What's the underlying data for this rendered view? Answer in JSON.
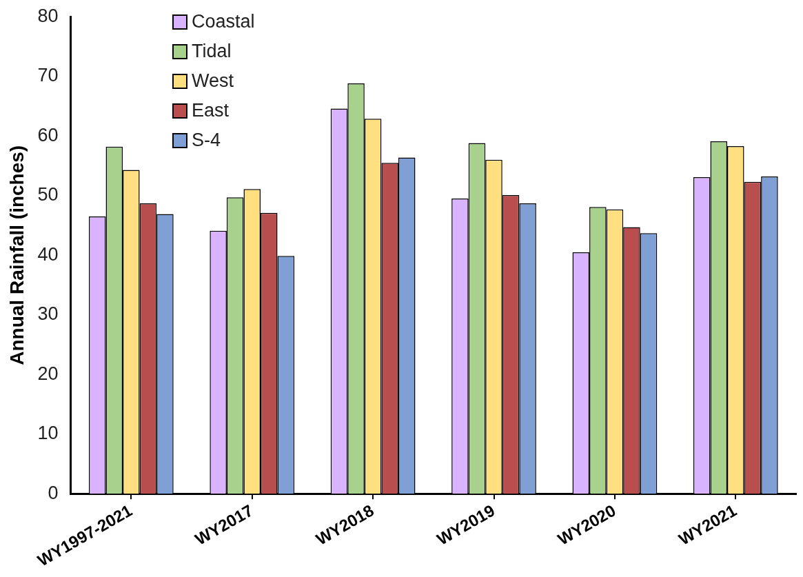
{
  "chart_data": {
    "type": "bar",
    "ylabel": "Annual Rainfall (inches)",
    "categories": [
      "WY1997-2021",
      "WY2017",
      "WY2018",
      "WY2019",
      "WY2020",
      "WY2021"
    ],
    "series": [
      {
        "name": "Coastal",
        "color": "#d9b3ff",
        "values": [
          46.5,
          44.1,
          64.6,
          49.5,
          40.5,
          53.1
        ]
      },
      {
        "name": "Tidal",
        "color": "#a9d18e",
        "values": [
          58.2,
          49.7,
          68.8,
          58.8,
          48.1,
          59.1
        ]
      },
      {
        "name": "West",
        "color": "#ffdf80",
        "values": [
          54.3,
          51.1,
          62.9,
          56.0,
          47.7,
          58.3
        ]
      },
      {
        "name": "East",
        "color": "#b94e4e",
        "values": [
          48.7,
          47.1,
          55.5,
          50.1,
          44.7,
          52.3
        ]
      },
      {
        "name": "S-4",
        "color": "#7f9fd5",
        "values": [
          46.9,
          39.9,
          56.4,
          48.7,
          43.7,
          53.2
        ]
      }
    ],
    "ylim": [
      0,
      80
    ],
    "yticks": [
      0,
      10,
      20,
      30,
      40,
      50,
      60,
      70,
      80
    ],
    "grid": false,
    "legend": "top left"
  }
}
